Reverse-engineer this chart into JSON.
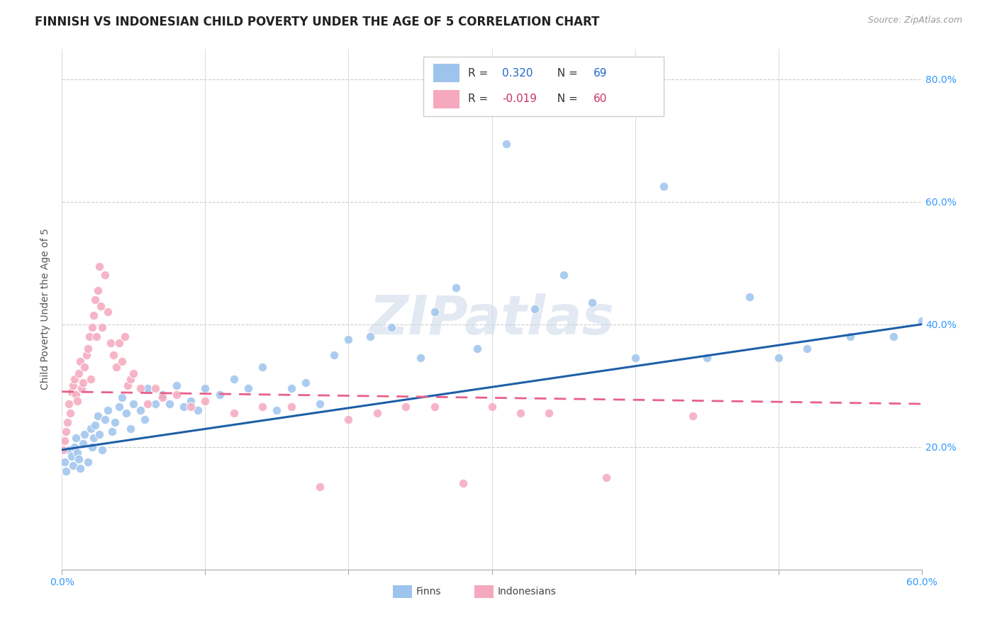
{
  "title": "FINNISH VS INDONESIAN CHILD POVERTY UNDER THE AGE OF 5 CORRELATION CHART",
  "source": "Source: ZipAtlas.com",
  "ylabel": "Child Poverty Under the Age of 5",
  "x_min": 0.0,
  "x_max": 0.6,
  "y_min": 0.0,
  "y_max": 0.85,
  "x_tick_positions": [
    0.0,
    0.1,
    0.2,
    0.3,
    0.4,
    0.5,
    0.6
  ],
  "x_tick_labels": [
    "0.0%",
    "",
    "",
    "",
    "",
    "",
    "60.0%"
  ],
  "y_tick_positions": [
    0.2,
    0.4,
    0.6,
    0.8
  ],
  "y_tick_labels": [
    "20.0%",
    "40.0%",
    "60.0%",
    "80.0%"
  ],
  "finns_color": "#9ec4ed",
  "indonesians_color": "#f5a8be",
  "finns_line_color": "#1e5fa8",
  "indonesians_line_color": "#e8608a",
  "title_fontsize": 12,
  "axis_label_fontsize": 10,
  "tick_fontsize": 10,
  "watermark": "ZIPatlas",
  "background_color": "#ffffff",
  "grid_color": "#cccccc",
  "finns_line_start_y": 0.195,
  "finns_line_end_y": 0.4,
  "indonesians_line_start_y": 0.29,
  "indonesians_line_end_y": 0.27,
  "finns_x": [
    0.002,
    0.003,
    0.005,
    0.007,
    0.008,
    0.009,
    0.01,
    0.011,
    0.012,
    0.013,
    0.015,
    0.016,
    0.018,
    0.02,
    0.021,
    0.022,
    0.023,
    0.025,
    0.026,
    0.028,
    0.03,
    0.032,
    0.035,
    0.037,
    0.04,
    0.042,
    0.045,
    0.048,
    0.05,
    0.055,
    0.058,
    0.06,
    0.065,
    0.07,
    0.075,
    0.08,
    0.085,
    0.09,
    0.095,
    0.1,
    0.11,
    0.12,
    0.13,
    0.14,
    0.15,
    0.16,
    0.17,
    0.18,
    0.19,
    0.2,
    0.215,
    0.23,
    0.25,
    0.26,
    0.275,
    0.29,
    0.31,
    0.33,
    0.35,
    0.37,
    0.4,
    0.42,
    0.45,
    0.48,
    0.5,
    0.52,
    0.55,
    0.58,
    0.6
  ],
  "finns_y": [
    0.175,
    0.16,
    0.195,
    0.185,
    0.17,
    0.2,
    0.215,
    0.19,
    0.18,
    0.165,
    0.205,
    0.22,
    0.175,
    0.23,
    0.2,
    0.215,
    0.235,
    0.25,
    0.22,
    0.195,
    0.245,
    0.26,
    0.225,
    0.24,
    0.265,
    0.28,
    0.255,
    0.23,
    0.27,
    0.26,
    0.245,
    0.295,
    0.27,
    0.285,
    0.27,
    0.3,
    0.265,
    0.275,
    0.26,
    0.295,
    0.285,
    0.31,
    0.295,
    0.33,
    0.26,
    0.295,
    0.305,
    0.27,
    0.35,
    0.375,
    0.38,
    0.395,
    0.345,
    0.42,
    0.46,
    0.36,
    0.695,
    0.425,
    0.48,
    0.435,
    0.345,
    0.625,
    0.345,
    0.445,
    0.345,
    0.36,
    0.38,
    0.38,
    0.405
  ],
  "indonesians_x": [
    0.001,
    0.002,
    0.003,
    0.004,
    0.005,
    0.006,
    0.007,
    0.008,
    0.009,
    0.01,
    0.011,
    0.012,
    0.013,
    0.014,
    0.015,
    0.016,
    0.017,
    0.018,
    0.019,
    0.02,
    0.021,
    0.022,
    0.023,
    0.024,
    0.025,
    0.026,
    0.027,
    0.028,
    0.03,
    0.032,
    0.034,
    0.036,
    0.038,
    0.04,
    0.042,
    0.044,
    0.046,
    0.048,
    0.05,
    0.055,
    0.06,
    0.065,
    0.07,
    0.08,
    0.09,
    0.1,
    0.12,
    0.14,
    0.16,
    0.18,
    0.2,
    0.22,
    0.24,
    0.26,
    0.28,
    0.3,
    0.32,
    0.34,
    0.38,
    0.44
  ],
  "indonesians_y": [
    0.195,
    0.21,
    0.225,
    0.24,
    0.27,
    0.255,
    0.29,
    0.3,
    0.31,
    0.285,
    0.275,
    0.32,
    0.34,
    0.295,
    0.305,
    0.33,
    0.35,
    0.36,
    0.38,
    0.31,
    0.395,
    0.415,
    0.44,
    0.38,
    0.455,
    0.495,
    0.43,
    0.395,
    0.48,
    0.42,
    0.37,
    0.35,
    0.33,
    0.37,
    0.34,
    0.38,
    0.3,
    0.31,
    0.32,
    0.295,
    0.27,
    0.295,
    0.28,
    0.285,
    0.265,
    0.275,
    0.255,
    0.265,
    0.265,
    0.135,
    0.245,
    0.255,
    0.265,
    0.265,
    0.14,
    0.265,
    0.255,
    0.255,
    0.15,
    0.25
  ]
}
